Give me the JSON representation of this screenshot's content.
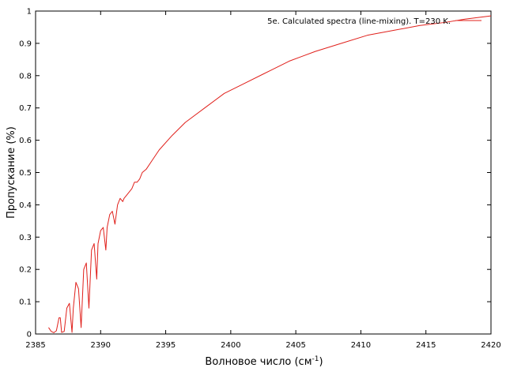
{
  "chart_data": {
    "type": "line",
    "xlabel": "Волновое число (см",
    "xlabel_sup": "-1",
    "xlabel_suffix": ")",
    "ylabel": "Пропускание (%)",
    "xlim": [
      2385,
      2420
    ],
    "ylim": [
      0,
      1
    ],
    "xticks": [
      2385,
      2390,
      2395,
      2400,
      2405,
      2410,
      2415,
      2420
    ],
    "yticks": [
      0,
      0.1,
      0.2,
      0.3,
      0.4,
      0.5,
      0.6,
      0.7,
      0.8,
      0.9,
      1
    ],
    "grid": false,
    "legend_position": "top-right",
    "series": [
      {
        "name": "5e. Calculated spectra (line-mixing). T=230 K.",
        "color": "#e0201b",
        "x": [
          2386.0,
          2386.2,
          2386.4,
          2386.6,
          2386.8,
          2386.9,
          2387.0,
          2387.2,
          2387.4,
          2387.6,
          2387.8,
          2387.9,
          2388.1,
          2388.3,
          2388.5,
          2388.7,
          2388.9,
          2389.1,
          2389.3,
          2389.5,
          2389.7,
          2389.8,
          2390.0,
          2390.2,
          2390.4,
          2390.5,
          2390.7,
          2390.9,
          2391.1,
          2391.3,
          2391.5,
          2391.7,
          2391.8,
          2392.0,
          2392.2,
          2392.4,
          2392.6,
          2392.8,
          2393.0,
          2393.2,
          2393.5,
          2394.0,
          2394.5,
          2395.5,
          2396.5,
          2398.0,
          2399.5,
          2401.0,
          2402.5,
          2403.0,
          2404.5,
          2406.5,
          2408.5,
          2410.5,
          2412.5,
          2414.5,
          2416.5,
          2418.0,
          2420.0
        ],
        "y": [
          0.02,
          0.008,
          0.004,
          0.01,
          0.05,
          0.05,
          0.005,
          0.008,
          0.08,
          0.095,
          0.005,
          0.08,
          0.16,
          0.14,
          0.02,
          0.2,
          0.22,
          0.08,
          0.26,
          0.28,
          0.17,
          0.28,
          0.32,
          0.33,
          0.26,
          0.33,
          0.37,
          0.38,
          0.34,
          0.4,
          0.42,
          0.41,
          0.42,
          0.43,
          0.44,
          0.45,
          0.47,
          0.47,
          0.48,
          0.5,
          0.51,
          0.54,
          0.57,
          0.615,
          0.655,
          0.7,
          0.745,
          0.775,
          0.805,
          0.815,
          0.845,
          0.875,
          0.9,
          0.925,
          0.94,
          0.955,
          0.965,
          0.975,
          0.985
        ]
      }
    ]
  }
}
